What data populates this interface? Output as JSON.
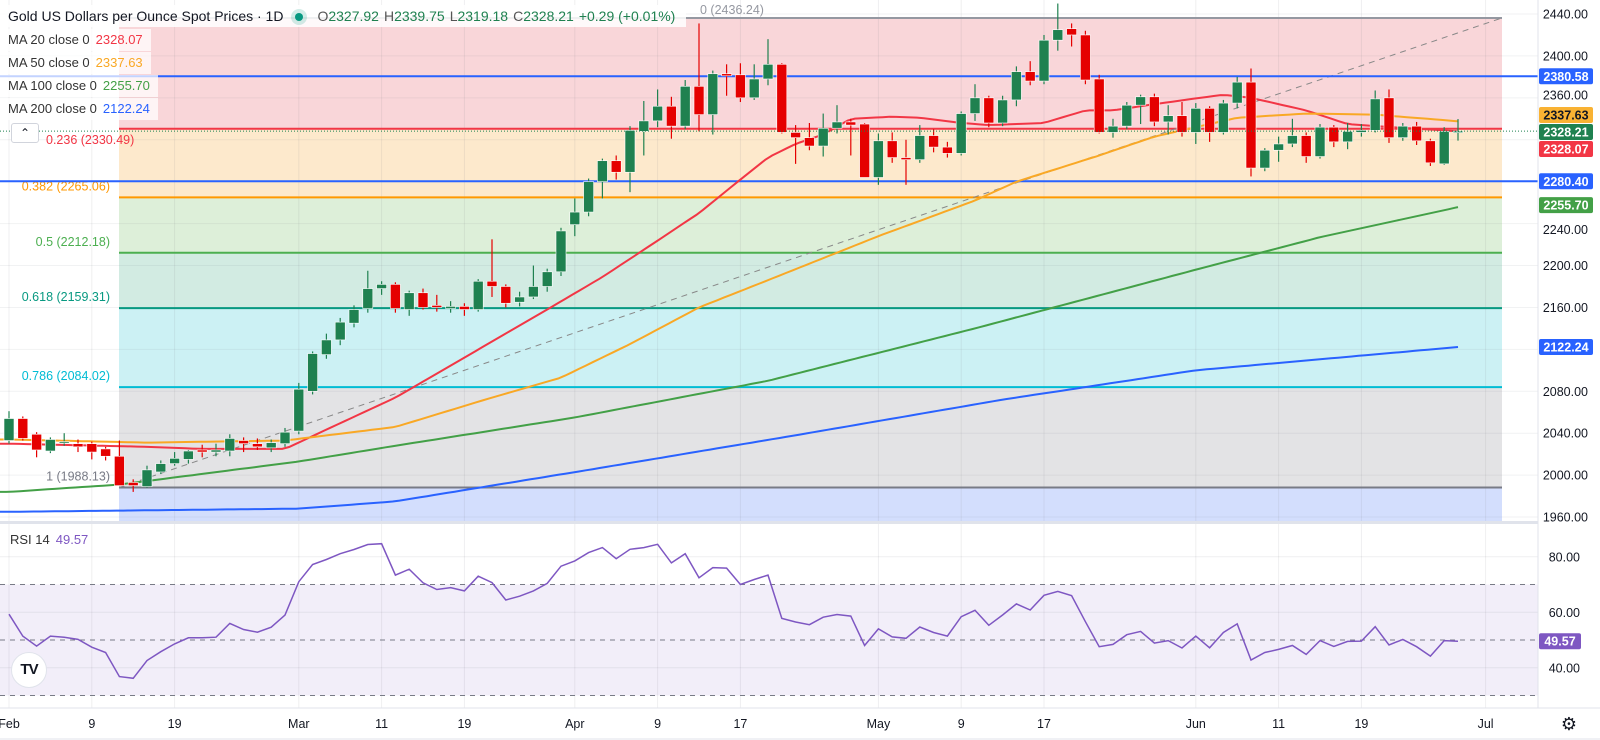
{
  "header": {
    "title": "Gold US Dollars per Ounce Spot Prices · 1D",
    "o_label": "O",
    "o": "2327.92",
    "h_label": "H",
    "h": "2339.75",
    "l_label": "L",
    "l": "2319.18",
    "c_label": "C",
    "c": "2328.21",
    "change": "+0.29 (+0.01%)"
  },
  "indicators": [
    {
      "label": "MA 20 close 0",
      "value": "2328.07",
      "color": "#f23645"
    },
    {
      "label": "MA 50 close 0",
      "value": "2337.63",
      "color": "#f9a825"
    },
    {
      "label": "MA 100 close 0",
      "value": "2255.70",
      "color": "#43a047"
    },
    {
      "label": "MA 200 close 0",
      "value": "2122.24",
      "color": "#2962ff"
    }
  ],
  "collapse_icon": "chevron-up",
  "rsi": {
    "label": "RSI 14",
    "value": "49.57",
    "color": "#7e57c2"
  },
  "logo_text": "TV",
  "fib": [
    {
      "ratio": 0,
      "price": 2436.24,
      "label": "0 (2436.24)",
      "color": "#9598a1",
      "zone": "#f9d6d9"
    },
    {
      "ratio": 0.236,
      "price": 2330.49,
      "label": "0.236 (2330.49)",
      "color": "#f23645",
      "zone": "#fde9cc"
    },
    {
      "ratio": 0.382,
      "price": 2265.06,
      "label": "0.382 (2265.06)",
      "color": "#ff9800",
      "zone": "#ddefd9"
    },
    {
      "ratio": 0.5,
      "price": 2212.18,
      "label": "0.5 (2212.18)",
      "color": "#4caf50",
      "zone": "#d2ebe2"
    },
    {
      "ratio": 0.618,
      "price": 2159.31,
      "label": "0.618 (2159.31)",
      "color": "#089981",
      "zone": "#ccf1f4"
    },
    {
      "ratio": 0.786,
      "price": 2084.02,
      "label": "0.786 (2084.02)",
      "color": "#00bcd4",
      "zone": "#e3e3e5"
    },
    {
      "ratio": 1,
      "price": 1988.13,
      "label": "1 (1988.13)",
      "color": "#787b86",
      "zone": "#d3defd"
    }
  ],
  "hlines": [
    {
      "price": 2380.58,
      "label": "2380.58",
      "color": "#2962ff"
    },
    {
      "price": 2280.4,
      "label": "2280.40",
      "color": "#2962ff"
    }
  ],
  "price_badges": [
    {
      "label": "2337.63",
      "color": "#f9b233",
      "text_color": "#131722"
    },
    {
      "label": "2328.21",
      "color": "#1f8150",
      "text_color": "#ffffff"
    },
    {
      "label": "2328.07",
      "color": "#f23645",
      "text_color": "#ffffff"
    },
    {
      "label": "2255.70",
      "color": "#43a047",
      "text_color": "#ffffff"
    },
    {
      "label": "2122.24",
      "color": "#2962ff",
      "text_color": "#ffffff"
    }
  ],
  "price_ticks": [
    "2440.00",
    "2400.00",
    "2360.00",
    "2240.00",
    "2200.00",
    "2160.00",
    "2080.00",
    "2040.00",
    "2000.00",
    "1960.00"
  ],
  "rsi_ticks": [
    "80.00",
    "60.00",
    "40.00"
  ],
  "time_labels": [
    {
      "text": "Feb",
      "i": 0
    },
    {
      "text": "9",
      "i": 6
    },
    {
      "text": "19",
      "i": 12
    },
    {
      "text": "Mar",
      "i": 21
    },
    {
      "text": "11",
      "i": 27
    },
    {
      "text": "19",
      "i": 33
    },
    {
      "text": "Apr",
      "i": 41
    },
    {
      "text": "9",
      "i": 47
    },
    {
      "text": "17",
      "i": 53
    },
    {
      "text": "May",
      "i": 63
    },
    {
      "text": "9",
      "i": 69
    },
    {
      "text": "17",
      "i": 75
    },
    {
      "text": "Jun",
      "i": 86
    },
    {
      "text": "11",
      "i": 92
    },
    {
      "text": "19",
      "i": 98
    },
    {
      "text": "Jul",
      "i": 107
    }
  ],
  "settings_icon": "gear",
  "chart_data": {
    "type": "candlestick",
    "title": "Gold US Dollars per Ounce Spot Prices · 1D",
    "ylim": [
      1960,
      2440
    ],
    "up_color": "#1f8150",
    "down_color": "#e50000",
    "last_price": 2328.21,
    "candles_ohlc": [
      [
        2033,
        2061,
        2030,
        2054
      ],
      [
        2054,
        2056,
        2033,
        2035
      ],
      [
        2039,
        2041,
        2017,
        2024
      ],
      [
        2023,
        2036,
        2021,
        2034
      ],
      [
        2031,
        2040,
        2028,
        2032
      ],
      [
        2030,
        2034,
        2022,
        2027
      ],
      [
        2030,
        2032,
        2015,
        2022
      ],
      [
        2025,
        2027,
        2014,
        2018
      ],
      [
        2018,
        2033,
        1990,
        1990
      ],
      [
        1993,
        1996,
        1984,
        1990
      ],
      [
        1989,
        2009,
        1988,
        2005
      ],
      [
        2003,
        2014,
        2001,
        2011
      ],
      [
        2011,
        2022,
        2009,
        2016
      ],
      [
        2015,
        2024,
        2011,
        2023
      ],
      [
        2024,
        2029,
        2017,
        2022
      ],
      [
        2022,
        2030,
        2018,
        2024
      ],
      [
        2023,
        2039,
        2018,
        2035
      ],
      [
        2033,
        2036,
        2022,
        2030
      ],
      [
        2030,
        2035,
        2024,
        2027
      ],
      [
        2026,
        2034,
        2022,
        2031
      ],
      [
        2030,
        2045,
        2027,
        2041
      ],
      [
        2042,
        2088,
        2039,
        2082
      ],
      [
        2080,
        2118,
        2077,
        2116
      ],
      [
        2115,
        2135,
        2111,
        2129
      ],
      [
        2129,
        2150,
        2124,
        2146
      ],
      [
        2145,
        2162,
        2141,
        2158
      ],
      [
        2159,
        2195,
        2155,
        2178
      ],
      [
        2178,
        2185,
        2172,
        2182
      ],
      [
        2182,
        2184,
        2155,
        2159
      ],
      [
        2158,
        2176,
        2152,
        2174
      ],
      [
        2174,
        2178,
        2158,
        2160
      ],
      [
        2162,
        2172,
        2156,
        2160
      ],
      [
        2159,
        2166,
        2155,
        2161
      ],
      [
        2161,
        2164,
        2152,
        2158
      ],
      [
        2158,
        2187,
        2156,
        2185
      ],
      [
        2185,
        2225,
        2170,
        2180
      ],
      [
        2180,
        2182,
        2160,
        2164
      ],
      [
        2165,
        2175,
        2161,
        2170
      ],
      [
        2170,
        2200,
        2168,
        2180
      ],
      [
        2180,
        2197,
        2175,
        2194
      ],
      [
        2194,
        2236,
        2190,
        2233
      ],
      [
        2239,
        2264,
        2228,
        2251
      ],
      [
        2251,
        2283,
        2247,
        2280
      ],
      [
        2280,
        2302,
        2264,
        2300
      ],
      [
        2300,
        2305,
        2282,
        2289
      ],
      [
        2289,
        2333,
        2270,
        2329
      ],
      [
        2328,
        2357,
        2305,
        2338
      ],
      [
        2338,
        2368,
        2332,
        2352
      ],
      [
        2352,
        2361,
        2321,
        2333
      ],
      [
        2333,
        2377,
        2330,
        2371
      ],
      [
        2371,
        2431,
        2328,
        2344
      ],
      [
        2344,
        2386,
        2325,
        2383
      ],
      [
        2383,
        2392,
        2362,
        2381
      ],
      [
        2382,
        2393,
        2356,
        2360
      ],
      [
        2360,
        2392,
        2358,
        2378
      ],
      [
        2378,
        2416,
        2372,
        2392
      ],
      [
        2392,
        2393,
        2326,
        2327
      ],
      [
        2327,
        2334,
        2297,
        2322
      ],
      [
        2322,
        2336,
        2310,
        2314
      ],
      [
        2314,
        2345,
        2304,
        2331
      ],
      [
        2331,
        2353,
        2326,
        2337
      ],
      [
        2337,
        2340,
        2305,
        2334
      ],
      [
        2335,
        2336,
        2284,
        2284
      ],
      [
        2284,
        2326,
        2277,
        2319
      ],
      [
        2319,
        2327,
        2298,
        2303
      ],
      [
        2303,
        2320,
        2277,
        2301
      ],
      [
        2301,
        2334,
        2298,
        2324
      ],
      [
        2324,
        2330,
        2308,
        2313
      ],
      [
        2313,
        2318,
        2303,
        2307
      ],
      [
        2307,
        2347,
        2305,
        2345
      ],
      [
        2345,
        2373,
        2338,
        2360
      ],
      [
        2360,
        2362,
        2332,
        2336
      ],
      [
        2336,
        2362,
        2333,
        2358
      ],
      [
        2358,
        2390,
        2352,
        2385
      ],
      [
        2385,
        2395,
        2372,
        2376
      ],
      [
        2376,
        2420,
        2373,
        2415
      ],
      [
        2415,
        2450,
        2405,
        2425
      ],
      [
        2426,
        2431,
        2409,
        2420
      ],
      [
        2420,
        2424,
        2373,
        2377
      ],
      [
        2378,
        2382,
        2326,
        2327
      ],
      [
        2327,
        2340,
        2322,
        2333
      ],
      [
        2333,
        2356,
        2330,
        2353
      ],
      [
        2353,
        2363,
        2335,
        2361
      ],
      [
        2361,
        2364,
        2333,
        2337
      ],
      [
        2337,
        2353,
        2325,
        2343
      ],
      [
        2343,
        2356,
        2323,
        2327
      ],
      [
        2327,
        2355,
        2316,
        2350
      ],
      [
        2350,
        2352,
        2318,
        2327
      ],
      [
        2327,
        2358,
        2325,
        2355
      ],
      [
        2355,
        2380,
        2350,
        2375
      ],
      [
        2375,
        2388,
        2285,
        2293
      ],
      [
        2293,
        2312,
        2290,
        2310
      ],
      [
        2310,
        2323,
        2299,
        2316
      ],
      [
        2316,
        2340,
        2313,
        2324
      ],
      [
        2324,
        2327,
        2298,
        2304
      ],
      [
        2304,
        2335,
        2302,
        2332
      ],
      [
        2332,
        2334,
        2313,
        2318
      ],
      [
        2318,
        2336,
        2311,
        2328
      ],
      [
        2327,
        2335,
        2323,
        2329
      ],
      [
        2329,
        2367,
        2327,
        2359
      ],
      [
        2360,
        2368,
        2317,
        2322
      ],
      [
        2322,
        2336,
        2319,
        2333
      ],
      [
        2333,
        2337,
        2315,
        2319
      ],
      [
        2319,
        2321,
        2295,
        2298
      ],
      [
        2297,
        2332,
        2296,
        2328
      ],
      [
        2327.92,
        2339.75,
        2319.18,
        2328.21
      ]
    ],
    "moving_averages": [
      {
        "name": "MA 20",
        "color": "#f23645",
        "points": [
          [
            0,
            2030
          ],
          [
            10,
            2027
          ],
          [
            14,
            2025
          ],
          [
            20,
            2025
          ],
          [
            28,
            2074
          ],
          [
            39,
            2158
          ],
          [
            43,
            2189
          ],
          [
            46,
            2215
          ],
          [
            50,
            2250
          ],
          [
            53,
            2282
          ],
          [
            55,
            2303
          ],
          [
            57,
            2316
          ],
          [
            59,
            2325
          ],
          [
            61,
            2340
          ],
          [
            64,
            2342
          ],
          [
            66,
            2341
          ],
          [
            69,
            2336
          ],
          [
            71,
            2334
          ],
          [
            75,
            2336
          ],
          [
            78,
            2348
          ],
          [
            80,
            2348
          ],
          [
            83,
            2354
          ],
          [
            88,
            2363
          ],
          [
            90,
            2360
          ],
          [
            94,
            2348
          ],
          [
            97,
            2335
          ],
          [
            99,
            2333
          ],
          [
            105,
            2328.07
          ]
        ]
      },
      {
        "name": "MA 50",
        "color": "#f9a825",
        "points": [
          [
            0,
            2034
          ],
          [
            10,
            2031
          ],
          [
            20,
            2033
          ],
          [
            28,
            2046
          ],
          [
            35,
            2074
          ],
          [
            40,
            2093
          ],
          [
            45,
            2125
          ],
          [
            50,
            2160
          ],
          [
            55,
            2186
          ],
          [
            63,
            2228
          ],
          [
            70,
            2262
          ],
          [
            73,
            2280
          ],
          [
            79,
            2305
          ],
          [
            83,
            2323
          ],
          [
            89,
            2341
          ],
          [
            94,
            2345
          ],
          [
            99,
            2344
          ],
          [
            105,
            2337.63
          ]
        ]
      },
      {
        "name": "MA 100",
        "color": "#43a047",
        "points": [
          [
            0,
            1984
          ],
          [
            8,
            1991
          ],
          [
            21,
            2013
          ],
          [
            28,
            2028
          ],
          [
            41,
            2055
          ],
          [
            55,
            2090
          ],
          [
            70,
            2140
          ],
          [
            86,
            2196
          ],
          [
            95,
            2227
          ],
          [
            105,
            2255.7
          ]
        ]
      },
      {
        "name": "MA 200",
        "color": "#2962ff",
        "points": [
          [
            0,
            1965
          ],
          [
            21,
            1968
          ],
          [
            28,
            1975
          ],
          [
            42,
            2005
          ],
          [
            57,
            2038
          ],
          [
            72,
            2072
          ],
          [
            86,
            2100
          ],
          [
            105,
            2122.24
          ]
        ]
      }
    ],
    "fib_trend": {
      "from_index": 8,
      "from_price": 1988.13,
      "to_index": 108,
      "to_price": 2436.24
    },
    "rsi": {
      "period": 14,
      "ylim": [
        20,
        90
      ],
      "bands": [
        70,
        50,
        30
      ],
      "values": [
        59.3,
        51.4,
        47.8,
        51.4,
        51,
        50.2,
        47.4,
        45.5,
        36.8,
        36.2,
        42.6,
        45.8,
        48.6,
        50.8,
        50.8,
        51,
        56,
        53.8,
        52.8,
        54.6,
        59,
        71,
        77.2,
        79,
        81.1,
        82.6,
        84.4,
        84.7,
        73.4,
        75.5,
        70.6,
        68.2,
        68.9,
        67.7,
        73,
        70.7,
        64.4,
        65.8,
        67.7,
        70.4,
        76.6,
        78.5,
        81.5,
        83.3,
        79.3,
        82.7,
        83.3,
        84.5,
        77.8,
        81.1,
        72.4,
        76.1,
        75.9,
        70,
        71.8,
        73.4,
        57.8,
        56.5,
        55.5,
        58.2,
        59.2,
        58.6,
        48,
        54,
        51.1,
        50.6,
        54.7,
        52.7,
        51.4,
        58.4,
        60.7,
        55.3,
        59,
        63,
        60.8,
        66.1,
        67.5,
        66,
        56.6,
        47.6,
        48.4,
        51.9,
        53.1,
        48.9,
        49.8,
        47.1,
        51.4,
        47.2,
        52.7,
        55.8,
        42.8,
        45.5,
        46.6,
        48,
        44.8,
        49.8,
        47.7,
        49.5,
        49.6,
        54.8,
        48.2,
        50.2,
        47.6,
        44.2,
        49.8,
        49.57
      ]
    }
  }
}
